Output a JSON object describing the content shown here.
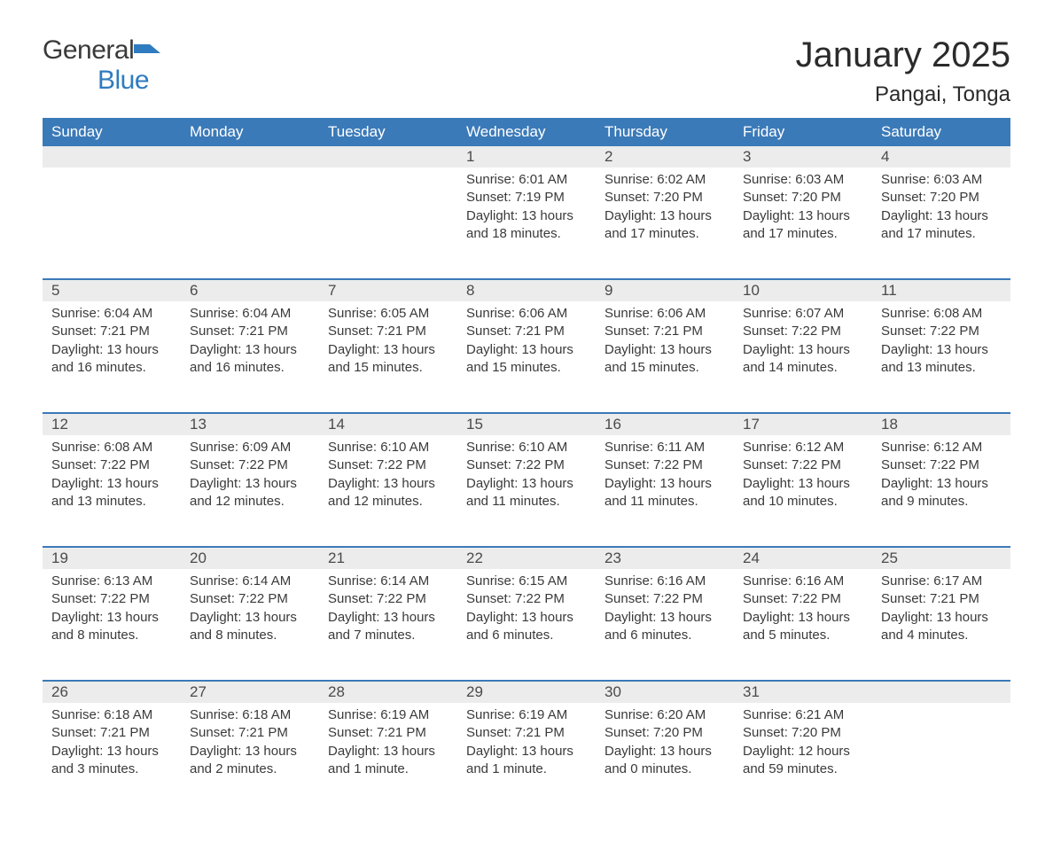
{
  "branding": {
    "logo_text_1": "General",
    "logo_text_2": "Blue",
    "flag_color": "#2f7bc0"
  },
  "header": {
    "month_title": "January 2025",
    "location": "Pangai, Tonga"
  },
  "styling": {
    "header_bg": "#3b7ab8",
    "header_text": "#ffffff",
    "daynum_bg": "#ececec",
    "row_divider": "#3b7ab8",
    "body_text": "#3a3a3a",
    "page_bg": "#ffffff",
    "title_fontsize": 40,
    "location_fontsize": 24,
    "dayheader_fontsize": 17,
    "cell_fontsize": 15
  },
  "calendar": {
    "day_headers": [
      "Sunday",
      "Monday",
      "Tuesday",
      "Wednesday",
      "Thursday",
      "Friday",
      "Saturday"
    ],
    "weeks": [
      [
        null,
        null,
        null,
        {
          "num": "1",
          "sunrise": "Sunrise: 6:01 AM",
          "sunset": "Sunset: 7:19 PM",
          "daylight": "Daylight: 13 hours and 18 minutes."
        },
        {
          "num": "2",
          "sunrise": "Sunrise: 6:02 AM",
          "sunset": "Sunset: 7:20 PM",
          "daylight": "Daylight: 13 hours and 17 minutes."
        },
        {
          "num": "3",
          "sunrise": "Sunrise: 6:03 AM",
          "sunset": "Sunset: 7:20 PM",
          "daylight": "Daylight: 13 hours and 17 minutes."
        },
        {
          "num": "4",
          "sunrise": "Sunrise: 6:03 AM",
          "sunset": "Sunset: 7:20 PM",
          "daylight": "Daylight: 13 hours and 17 minutes."
        }
      ],
      [
        {
          "num": "5",
          "sunrise": "Sunrise: 6:04 AM",
          "sunset": "Sunset: 7:21 PM",
          "daylight": "Daylight: 13 hours and 16 minutes."
        },
        {
          "num": "6",
          "sunrise": "Sunrise: 6:04 AM",
          "sunset": "Sunset: 7:21 PM",
          "daylight": "Daylight: 13 hours and 16 minutes."
        },
        {
          "num": "7",
          "sunrise": "Sunrise: 6:05 AM",
          "sunset": "Sunset: 7:21 PM",
          "daylight": "Daylight: 13 hours and 15 minutes."
        },
        {
          "num": "8",
          "sunrise": "Sunrise: 6:06 AM",
          "sunset": "Sunset: 7:21 PM",
          "daylight": "Daylight: 13 hours and 15 minutes."
        },
        {
          "num": "9",
          "sunrise": "Sunrise: 6:06 AM",
          "sunset": "Sunset: 7:21 PM",
          "daylight": "Daylight: 13 hours and 15 minutes."
        },
        {
          "num": "10",
          "sunrise": "Sunrise: 6:07 AM",
          "sunset": "Sunset: 7:22 PM",
          "daylight": "Daylight: 13 hours and 14 minutes."
        },
        {
          "num": "11",
          "sunrise": "Sunrise: 6:08 AM",
          "sunset": "Sunset: 7:22 PM",
          "daylight": "Daylight: 13 hours and 13 minutes."
        }
      ],
      [
        {
          "num": "12",
          "sunrise": "Sunrise: 6:08 AM",
          "sunset": "Sunset: 7:22 PM",
          "daylight": "Daylight: 13 hours and 13 minutes."
        },
        {
          "num": "13",
          "sunrise": "Sunrise: 6:09 AM",
          "sunset": "Sunset: 7:22 PM",
          "daylight": "Daylight: 13 hours and 12 minutes."
        },
        {
          "num": "14",
          "sunrise": "Sunrise: 6:10 AM",
          "sunset": "Sunset: 7:22 PM",
          "daylight": "Daylight: 13 hours and 12 minutes."
        },
        {
          "num": "15",
          "sunrise": "Sunrise: 6:10 AM",
          "sunset": "Sunset: 7:22 PM",
          "daylight": "Daylight: 13 hours and 11 minutes."
        },
        {
          "num": "16",
          "sunrise": "Sunrise: 6:11 AM",
          "sunset": "Sunset: 7:22 PM",
          "daylight": "Daylight: 13 hours and 11 minutes."
        },
        {
          "num": "17",
          "sunrise": "Sunrise: 6:12 AM",
          "sunset": "Sunset: 7:22 PM",
          "daylight": "Daylight: 13 hours and 10 minutes."
        },
        {
          "num": "18",
          "sunrise": "Sunrise: 6:12 AM",
          "sunset": "Sunset: 7:22 PM",
          "daylight": "Daylight: 13 hours and 9 minutes."
        }
      ],
      [
        {
          "num": "19",
          "sunrise": "Sunrise: 6:13 AM",
          "sunset": "Sunset: 7:22 PM",
          "daylight": "Daylight: 13 hours and 8 minutes."
        },
        {
          "num": "20",
          "sunrise": "Sunrise: 6:14 AM",
          "sunset": "Sunset: 7:22 PM",
          "daylight": "Daylight: 13 hours and 8 minutes."
        },
        {
          "num": "21",
          "sunrise": "Sunrise: 6:14 AM",
          "sunset": "Sunset: 7:22 PM",
          "daylight": "Daylight: 13 hours and 7 minutes."
        },
        {
          "num": "22",
          "sunrise": "Sunrise: 6:15 AM",
          "sunset": "Sunset: 7:22 PM",
          "daylight": "Daylight: 13 hours and 6 minutes."
        },
        {
          "num": "23",
          "sunrise": "Sunrise: 6:16 AM",
          "sunset": "Sunset: 7:22 PM",
          "daylight": "Daylight: 13 hours and 6 minutes."
        },
        {
          "num": "24",
          "sunrise": "Sunrise: 6:16 AM",
          "sunset": "Sunset: 7:22 PM",
          "daylight": "Daylight: 13 hours and 5 minutes."
        },
        {
          "num": "25",
          "sunrise": "Sunrise: 6:17 AM",
          "sunset": "Sunset: 7:21 PM",
          "daylight": "Daylight: 13 hours and 4 minutes."
        }
      ],
      [
        {
          "num": "26",
          "sunrise": "Sunrise: 6:18 AM",
          "sunset": "Sunset: 7:21 PM",
          "daylight": "Daylight: 13 hours and 3 minutes."
        },
        {
          "num": "27",
          "sunrise": "Sunrise: 6:18 AM",
          "sunset": "Sunset: 7:21 PM",
          "daylight": "Daylight: 13 hours and 2 minutes."
        },
        {
          "num": "28",
          "sunrise": "Sunrise: 6:19 AM",
          "sunset": "Sunset: 7:21 PM",
          "daylight": "Daylight: 13 hours and 1 minute."
        },
        {
          "num": "29",
          "sunrise": "Sunrise: 6:19 AM",
          "sunset": "Sunset: 7:21 PM",
          "daylight": "Daylight: 13 hours and 1 minute."
        },
        {
          "num": "30",
          "sunrise": "Sunrise: 6:20 AM",
          "sunset": "Sunset: 7:20 PM",
          "daylight": "Daylight: 13 hours and 0 minutes."
        },
        {
          "num": "31",
          "sunrise": "Sunrise: 6:21 AM",
          "sunset": "Sunset: 7:20 PM",
          "daylight": "Daylight: 12 hours and 59 minutes."
        },
        null
      ]
    ]
  }
}
